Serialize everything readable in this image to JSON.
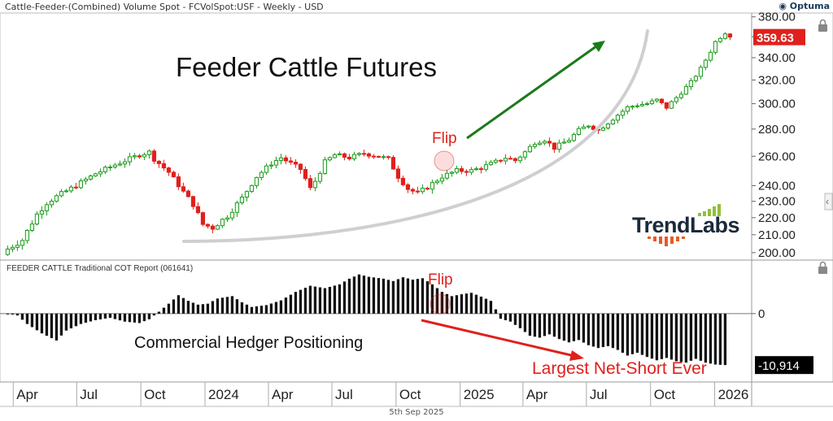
{
  "header": {
    "title": "Cattle-Feeder-(Combined) Volume Spot - FCVolSpot:USF - Weekly - USD",
    "logo": "Optuma"
  },
  "footer": {
    "date": "5th Sep 2025"
  },
  "colors": {
    "up": "#1a9c1a",
    "down": "#e0201c",
    "arrow_up": "#1a7a1a",
    "arrow_down": "#e0201c",
    "flip_text": "#e0201c",
    "label_bg": "#e0201c"
  },
  "chart_data": [
    {
      "type": "candlestick",
      "title": "Feeder Cattle Futures",
      "scale": "log",
      "ylim": [
        196,
        384
      ],
      "yticks": [
        200,
        210,
        220,
        230,
        240,
        260,
        280,
        300,
        320,
        340,
        360,
        380
      ],
      "ytick_labels": [
        "200.00",
        "210.00",
        "220.00",
        "230.00",
        "240.00",
        "260.00",
        "280.00",
        "300.00",
        "320.00",
        "340.00",
        "360.00",
        "380.00"
      ],
      "x_range": [
        "2023-03-20",
        "2026-02-23"
      ],
      "xticks": [
        {
          "label": "Apr",
          "date": "2023-04-01"
        },
        {
          "label": "Jul",
          "date": "2023-07-01"
        },
        {
          "label": "Oct",
          "date": "2023-10-01"
        },
        {
          "label": "2024",
          "date": "2024-01-01"
        },
        {
          "label": "Apr",
          "date": "2024-04-01"
        },
        {
          "label": "Jul",
          "date": "2024-07-01"
        },
        {
          "label": "Oct",
          "date": "2024-10-01"
        },
        {
          "label": "2025",
          "date": "2025-01-01"
        },
        {
          "label": "Apr",
          "date": "2025-04-01"
        },
        {
          "label": "Jul",
          "date": "2025-07-01"
        },
        {
          "label": "Oct",
          "date": "2025-10-01"
        },
        {
          "label": "2026",
          "date": "2026-01-01"
        }
      ],
      "first_week": "2023-03-24",
      "close_anchors": [
        [
          0,
          202
        ],
        [
          3,
          207
        ],
        [
          6,
          222
        ],
        [
          8,
          229
        ],
        [
          10,
          233
        ],
        [
          14,
          240
        ],
        [
          18,
          248
        ],
        [
          22,
          254
        ],
        [
          27,
          261
        ],
        [
          29,
          263
        ],
        [
          30,
          258
        ],
        [
          33,
          249
        ],
        [
          36,
          236
        ],
        [
          38,
          228
        ],
        [
          40,
          216
        ],
        [
          42,
          214
        ],
        [
          45,
          221
        ],
        [
          48,
          232
        ],
        [
          51,
          246
        ],
        [
          54,
          255
        ],
        [
          56,
          259
        ],
        [
          58,
          255
        ],
        [
          60,
          251
        ],
        [
          62,
          238
        ],
        [
          63,
          243
        ],
        [
          65,
          256
        ],
        [
          67,
          261
        ],
        [
          70,
          259
        ],
        [
          73,
          262
        ],
        [
          76,
          260
        ],
        [
          78,
          258
        ],
        [
          80,
          246
        ],
        [
          82,
          238
        ],
        [
          84,
          235
        ],
        [
          86,
          239
        ],
        [
          89,
          246
        ],
        [
          92,
          250
        ],
        [
          95,
          250
        ],
        [
          97,
          252
        ],
        [
          100,
          256
        ],
        [
          102,
          259
        ],
        [
          103,
          258
        ],
        [
          104,
          257
        ],
        [
          106,
          263
        ],
        [
          108,
          270
        ],
        [
          110,
          272
        ],
        [
          112,
          266
        ],
        [
          115,
          272
        ],
        [
          117,
          279
        ],
        [
          119,
          283
        ],
        [
          121,
          279
        ],
        [
          123,
          285
        ],
        [
          125,
          291
        ],
        [
          127,
          297
        ],
        [
          129,
          299
        ],
        [
          131,
          300
        ],
        [
          133,
          303
        ],
        [
          135,
          297
        ],
        [
          137,
          305
        ],
        [
          140,
          318
        ],
        [
          142,
          330
        ],
        [
          144,
          346
        ],
        [
          145,
          355
        ],
        [
          147,
          364
        ],
        [
          148,
          359.63
        ]
      ],
      "last_value": "359.63",
      "annotations": [
        "Flip"
      ],
      "watermark": "TrendLabs"
    },
    {
      "type": "bar",
      "title": "FEEDER CATTLE Traditional COT Report (061641)",
      "subtitle": "Commercial Hedger Positioning",
      "ylim": [
        -14500,
        11000
      ],
      "yticks": [
        0
      ],
      "ytick_labels": [
        "0"
      ],
      "value_anchors": [
        [
          0,
          0
        ],
        [
          2,
          -400
        ],
        [
          4,
          -2200
        ],
        [
          7,
          -4200
        ],
        [
          10,
          -5700
        ],
        [
          12,
          -3600
        ],
        [
          15,
          -2200
        ],
        [
          18,
          -1400
        ],
        [
          21,
          -900
        ],
        [
          24,
          -1700
        ],
        [
          27,
          -2000
        ],
        [
          29,
          -1200
        ],
        [
          31,
          400
        ],
        [
          33,
          2100
        ],
        [
          35,
          3900
        ],
        [
          37,
          2700
        ],
        [
          39,
          1900
        ],
        [
          41,
          2100
        ],
        [
          43,
          3200
        ],
        [
          46,
          3700
        ],
        [
          48,
          2400
        ],
        [
          50,
          1400
        ],
        [
          53,
          1800
        ],
        [
          56,
          2800
        ],
        [
          59,
          4600
        ],
        [
          62,
          5900
        ],
        [
          65,
          5400
        ],
        [
          68,
          6200
        ],
        [
          70,
          7400
        ],
        [
          72,
          8300
        ],
        [
          74,
          7800
        ],
        [
          77,
          7400
        ],
        [
          79,
          6900
        ],
        [
          81,
          7700
        ],
        [
          83,
          7200
        ],
        [
          85,
          7500
        ],
        [
          87,
          6200
        ],
        [
          89,
          4600
        ],
        [
          91,
          3700
        ],
        [
          93,
          4100
        ],
        [
          95,
          4400
        ],
        [
          97,
          3600
        ],
        [
          99,
          2700
        ],
        [
          100,
          900
        ],
        [
          101,
          -1100
        ],
        [
          103,
          -1700
        ],
        [
          105,
          -3100
        ],
        [
          107,
          -4700
        ],
        [
          109,
          -5100
        ],
        [
          111,
          -4400
        ],
        [
          113,
          -5400
        ],
        [
          115,
          -6100
        ],
        [
          117,
          -5600
        ],
        [
          119,
          -6700
        ],
        [
          121,
          -7300
        ],
        [
          123,
          -6900
        ],
        [
          125,
          -7700
        ],
        [
          127,
          -8900
        ],
        [
          129,
          -8300
        ],
        [
          131,
          -9200
        ],
        [
          133,
          -9900
        ],
        [
          135,
          -9400
        ],
        [
          137,
          -10100
        ],
        [
          139,
          -10400
        ],
        [
          141,
          -9600
        ],
        [
          143,
          -10400
        ],
        [
          145,
          -10800
        ],
        [
          147,
          -10914
        ]
      ],
      "last_value": "-10,914",
      "annotations": [
        "Flip",
        "Largest Net-Short Ever"
      ]
    }
  ],
  "lock_icon": "lock-icon",
  "scroll_icon": "chevron-left-icon"
}
